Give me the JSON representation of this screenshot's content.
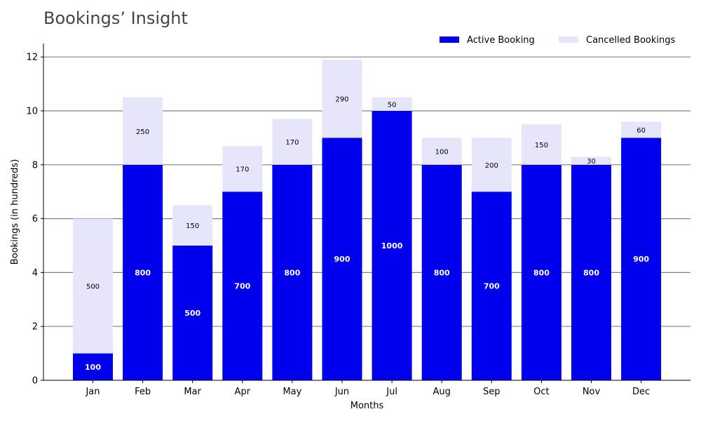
{
  "chart_data": {
    "type": "bar",
    "stacked": true,
    "title": "Bookings’ Insight",
    "xlabel": "Months",
    "ylabel": "Bookings (in hundreds)",
    "ylim": [
      0,
      12.5
    ],
    "yticks": [
      0,
      2,
      4,
      6,
      8,
      10,
      12
    ],
    "grid": "horizontal",
    "legend_position": "top-right",
    "categories": [
      "Jan",
      "Feb",
      "Mar",
      "Apr",
      "May",
      "Jun",
      "Jul",
      "Aug",
      "Sep",
      "Oct",
      "Nov",
      "Dec"
    ],
    "series": [
      {
        "name": "Active Booking",
        "color": "#0000ee",
        "values": [
          1,
          8,
          5,
          7,
          8,
          9,
          10,
          8,
          7,
          8,
          8,
          9
        ],
        "data_labels": [
          "100",
          "800",
          "500",
          "700",
          "800",
          "900",
          "1000",
          "800",
          "700",
          "800",
          "800",
          "900"
        ]
      },
      {
        "name": "Cancelled Bookings",
        "color": "#e6e6fa",
        "values": [
          5,
          2.5,
          1.5,
          1.7,
          1.7,
          2.9,
          0.5,
          1,
          2,
          1.5,
          0.3,
          0.6
        ],
        "data_labels": [
          "500",
          "250",
          "150",
          "170",
          "170",
          "290",
          "50",
          "100",
          "200",
          "150",
          "30",
          "60"
        ]
      }
    ]
  }
}
